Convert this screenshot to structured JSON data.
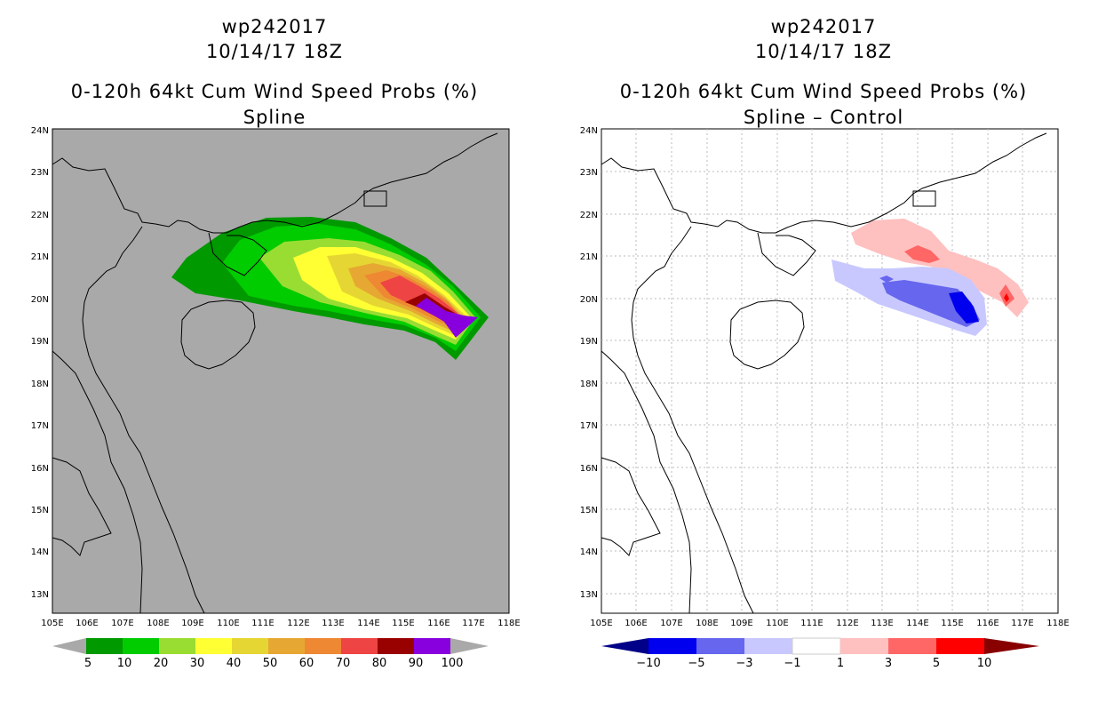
{
  "panels": [
    {
      "storm_id": "wp242017",
      "datetime": "10/14/17 18Z",
      "title": "0-120h 64kt Cum Wind Speed Probs (%)",
      "subtitle": "Spline",
      "legend_labels": [
        "5",
        "10",
        "20",
        "30",
        "40",
        "50",
        "60",
        "70",
        "80",
        "90",
        "100"
      ]
    },
    {
      "storm_id": "wp242017",
      "datetime": "10/14/17 18Z",
      "title": "0-120h 64kt Cum Wind Speed Probs (%)",
      "subtitle": "Spline – Control",
      "legend_labels": [
        "−10",
        "−5",
        "−3",
        "−1",
        "1",
        "3",
        "5",
        "10"
      ]
    }
  ],
  "axes": {
    "lon_labels": [
      "105E",
      "106E",
      "107E",
      "108E",
      "109E",
      "110E",
      "111E",
      "112E",
      "113E",
      "114E",
      "115E",
      "116E",
      "117E",
      "118E"
    ],
    "lat_labels": [
      "24N",
      "23N",
      "22N",
      "21N",
      "20N",
      "19N",
      "18N",
      "17N",
      "16N",
      "15N",
      "14N",
      "13N"
    ]
  },
  "colors": {
    "map_background_left": "#a9a9a9",
    "prob_scale": [
      "#009900",
      "#00cc00",
      "#99dd33",
      "#ffff33",
      "#e6d633",
      "#e6a833",
      "#ee8833",
      "#ee4444",
      "#990000",
      "#8800dd"
    ],
    "diff_scale": [
      "#000088",
      "#0000ee",
      "#6666ee",
      "#c8c8ff",
      "#ffffff",
      "#ffc0c0",
      "#ff6666",
      "#ff0000",
      "#880000"
    ]
  }
}
